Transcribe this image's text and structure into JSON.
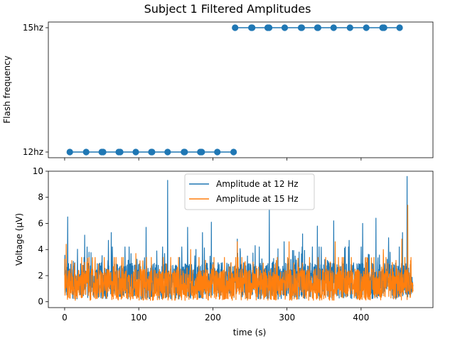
{
  "chart_data": [
    {
      "type": "line",
      "title": "Subject 1 Filtered Amplitudes",
      "xlabel": "",
      "ylabel": "Flash frequency",
      "y_categories": [
        "12hz",
        "15hz"
      ],
      "xlim": [
        -22,
        497
      ],
      "x_ticks": [
        0,
        100,
        200,
        300,
        400
      ],
      "x_ticklabels_visible": false,
      "grid": false,
      "series": [
        {
          "color": "#1f77b4",
          "marker": "circle",
          "x": [
            7,
            29,
            50,
            52,
            73,
            75,
            96,
            117,
            118,
            139,
            161,
            162,
            183,
            185,
            206,
            228,
            230,
            252,
            253,
            274,
            276,
            297,
            319,
            320,
            341,
            342,
            363,
            385,
            407,
            429,
            431,
            452
          ],
          "y": [
            "12hz",
            "12hz",
            "12hz",
            "12hz",
            "12hz",
            "12hz",
            "12hz",
            "12hz",
            "12hz",
            "12hz",
            "12hz",
            "12hz",
            "12hz",
            "12hz",
            "12hz",
            "12hz",
            "15hz",
            "15hz",
            "15hz",
            "15hz",
            "15hz",
            "15hz",
            "15hz",
            "15hz",
            "15hz",
            "15hz",
            "15hz",
            "15hz",
            "15hz",
            "15hz",
            "15hz",
            "15hz"
          ]
        }
      ]
    },
    {
      "type": "line",
      "title": "",
      "xlabel": "time (s)",
      "ylabel": "Voltage (µV)",
      "xlim": [
        -22,
        497
      ],
      "ylim": [
        -0.45,
        10
      ],
      "x_ticks": [
        0,
        100,
        200,
        300,
        400
      ],
      "y_ticks": [
        0,
        2,
        4,
        6,
        8,
        10
      ],
      "grid": false,
      "legend_position": "top-center",
      "x_range": [
        0,
        470
      ],
      "series": [
        {
          "name": "Amplitude at 12 Hz",
          "color": "#1f77b4",
          "spikes": [
            [
              4,
              6.5
            ],
            [
              27,
              5.1
            ],
            [
              59,
              4.7
            ],
            [
              63,
              5.3
            ],
            [
              110,
              5.7
            ],
            [
              139,
              9.3
            ],
            [
              166,
              5.7
            ],
            [
              186,
              5.3
            ],
            [
              198,
              6.1
            ],
            [
              233,
              4.8
            ],
            [
              257,
              4.3
            ],
            [
              276,
              7.1
            ],
            [
              296,
              4.6
            ],
            [
              321,
              5.2
            ],
            [
              341,
              5.8
            ],
            [
              363,
              6.2
            ],
            [
              384,
              4.7
            ],
            [
              402,
              6.0
            ],
            [
              420,
              6.4
            ],
            [
              437,
              4.9
            ],
            [
              456,
              5.3
            ],
            [
              462,
              9.6
            ]
          ]
        },
        {
          "name": "Amplitude at 15 Hz",
          "color": "#ff7f0e",
          "spikes": [
            [
              2,
              4.4
            ],
            [
              96,
              3.7
            ],
            [
              170,
              4.0
            ],
            [
              233,
              4.6
            ],
            [
              303,
              4.6
            ],
            [
              365,
              4.6
            ],
            [
              430,
              4.0
            ],
            [
              455,
              4.8
            ],
            [
              463,
              7.4
            ]
          ]
        }
      ]
    }
  ]
}
